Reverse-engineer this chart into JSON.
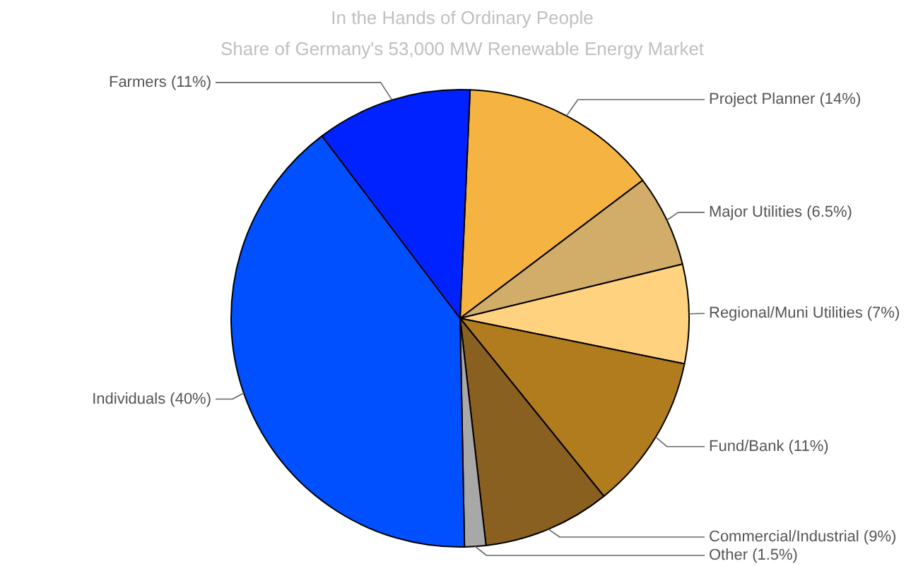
{
  "chart_data": {
    "type": "pie",
    "title": "In the Hands of Ordinary People",
    "subtitle": "Share of Germany's 53,000 MW Renewable Energy Market",
    "categories": [
      "Project Planner (14%)",
      "Major Utilities (6.5%)",
      "Regional/Muni Utilities (7%)",
      "Fund/Bank (11%)",
      "Commercial/Industrial (9%)",
      "Other (1.5%)",
      "Individuals (40%)",
      "Farmers (11%)"
    ],
    "values": [
      14,
      6.5,
      7,
      11,
      9,
      1.5,
      40,
      11
    ],
    "colors": [
      "#f5b441",
      "#d2ad6a",
      "#ffd280",
      "#b07c1e",
      "#8a6020",
      "#a8a8a8",
      "#0050ff",
      "#0022ff"
    ]
  }
}
